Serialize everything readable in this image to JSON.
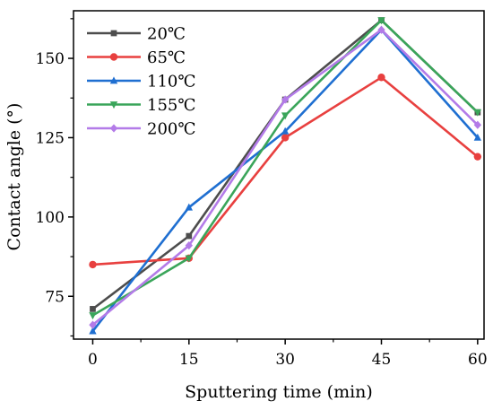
{
  "chart_data": {
    "type": "line",
    "xlabel": "Sputtering time (min)",
    "ylabel": "Contact angle (°)",
    "x": [
      0,
      15,
      30,
      45,
      60
    ],
    "xticks": [
      0,
      15,
      30,
      45,
      60
    ],
    "yticks": [
      75,
      100,
      125,
      150
    ],
    "xlim": [
      -3,
      61
    ],
    "ylim": [
      61.5,
      165
    ],
    "grid": false,
    "legend_position": "top-left",
    "series": [
      {
        "name": "20℃",
        "color": "#4d4d4d",
        "marker": "square",
        "values": [
          71,
          94,
          137,
          162,
          133
        ]
      },
      {
        "name": "65℃",
        "color": "#e8403f",
        "marker": "circle",
        "values": [
          85,
          87,
          125,
          144,
          119
        ]
      },
      {
        "name": "110℃",
        "color": "#1f6fd1",
        "marker": "triangle-up",
        "values": [
          64,
          103,
          127,
          159,
          125
        ]
      },
      {
        "name": "155℃",
        "color": "#3aa55a",
        "marker": "triangle-down",
        "values": [
          69,
          87,
          132,
          162,
          133
        ]
      },
      {
        "name": "200℃",
        "color": "#b37be8",
        "marker": "diamond",
        "values": [
          66,
          91,
          137,
          159,
          129
        ]
      }
    ]
  }
}
